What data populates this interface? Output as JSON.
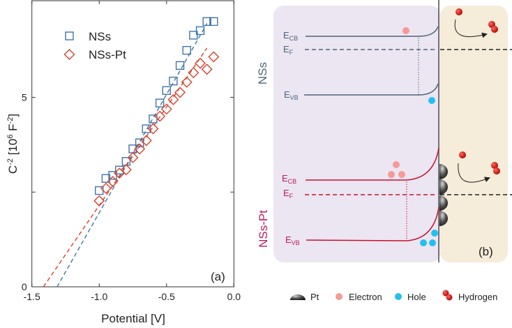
{
  "chart_data": {
    "type": "scatter",
    "panel_label": "(a)",
    "xlabel": "Potential [V]",
    "ylabel_base": "C",
    "ylabel_exp": "-2",
    "ylabel_unit_open": " [10",
    "ylabel_unit_exp": "6",
    "ylabel_unit_mid": " F",
    "ylabel_unit_exp2": "-2",
    "ylabel_unit_close": "]",
    "xlim": [
      -1.5,
      0.0
    ],
    "ylim": [
      0,
      7.55
    ],
    "xticks": [
      -1.5,
      -1.0,
      -0.5,
      0.0
    ],
    "xtick_labels": [
      "-1.5",
      "-1.0",
      "-0.5",
      "0.0"
    ],
    "yticks": [
      0,
      2.5,
      5
    ],
    "ytick_labels": [
      "0",
      "",
      "5"
    ],
    "legend_position": "top-left",
    "series": [
      {
        "name": "NSs",
        "marker": "square",
        "color": "#3f75a8",
        "x": [
          -1.0,
          -0.95,
          -0.9,
          -0.85,
          -0.8,
          -0.75,
          -0.7,
          -0.65,
          -0.6,
          -0.55,
          -0.5,
          -0.45,
          -0.4,
          -0.35,
          -0.3,
          -0.25,
          -0.2,
          -0.15
        ],
        "y": [
          2.54,
          2.86,
          2.94,
          3.08,
          3.31,
          3.64,
          3.8,
          4.17,
          4.43,
          4.85,
          5.18,
          5.43,
          5.84,
          6.24,
          6.64,
          6.76,
          7.0,
          7.0
        ],
        "fit": {
          "x": [
            -1.313,
            -0.2
          ],
          "y": [
            0,
            6.95
          ]
        }
      },
      {
        "name": "NSs-Pt",
        "marker": "diamond",
        "color": "#d9412b",
        "x": [
          -1.0,
          -0.95,
          -0.9,
          -0.85,
          -0.8,
          -0.75,
          -0.7,
          -0.65,
          -0.6,
          -0.55,
          -0.5,
          -0.45,
          -0.4,
          -0.35,
          -0.3,
          -0.25,
          -0.2,
          -0.15
        ],
        "y": [
          2.27,
          2.6,
          2.78,
          3.0,
          3.09,
          3.41,
          3.64,
          3.86,
          4.17,
          4.5,
          4.69,
          4.94,
          5.13,
          5.4,
          5.65,
          5.9,
          5.74,
          6.07
        ],
        "fit": {
          "x": [
            -1.414,
            -0.2
          ],
          "y": [
            0,
            6.3
          ]
        }
      }
    ]
  },
  "diagram": {
    "panel_label": "(b)",
    "colors": {
      "nss": "#4c6478",
      "nsspt": "#c8102e",
      "nsspt_label": "#c0185a",
      "electron": "#f59a96",
      "hole": "#22c0f0",
      "hydrogen": "#d41010",
      "panel_left": "#ece6f2",
      "panel_right": "#f5ecd9"
    },
    "nss": {
      "title": "NSs",
      "ecb": {
        "main": "E",
        "sub": "CB"
      },
      "ef": {
        "main": "E",
        "sub": "F"
      },
      "evb": {
        "main": "E",
        "sub": "VB"
      }
    },
    "nsspt": {
      "title": "NSs-Pt",
      "ecb": {
        "main": "E",
        "sub": "CB"
      },
      "ef": {
        "main": "E",
        "sub": "F"
      },
      "evb": {
        "main": "E",
        "sub": "VB"
      }
    },
    "legend": [
      {
        "icon": "pt-hemisphere-icon",
        "label": "Pt"
      },
      {
        "icon": "electron-dot-icon",
        "label": "Electron"
      },
      {
        "icon": "hole-dot-icon",
        "label": "Hole"
      },
      {
        "icon": "hydrogen-molecule-icon",
        "label": "Hydrogen"
      }
    ]
  }
}
